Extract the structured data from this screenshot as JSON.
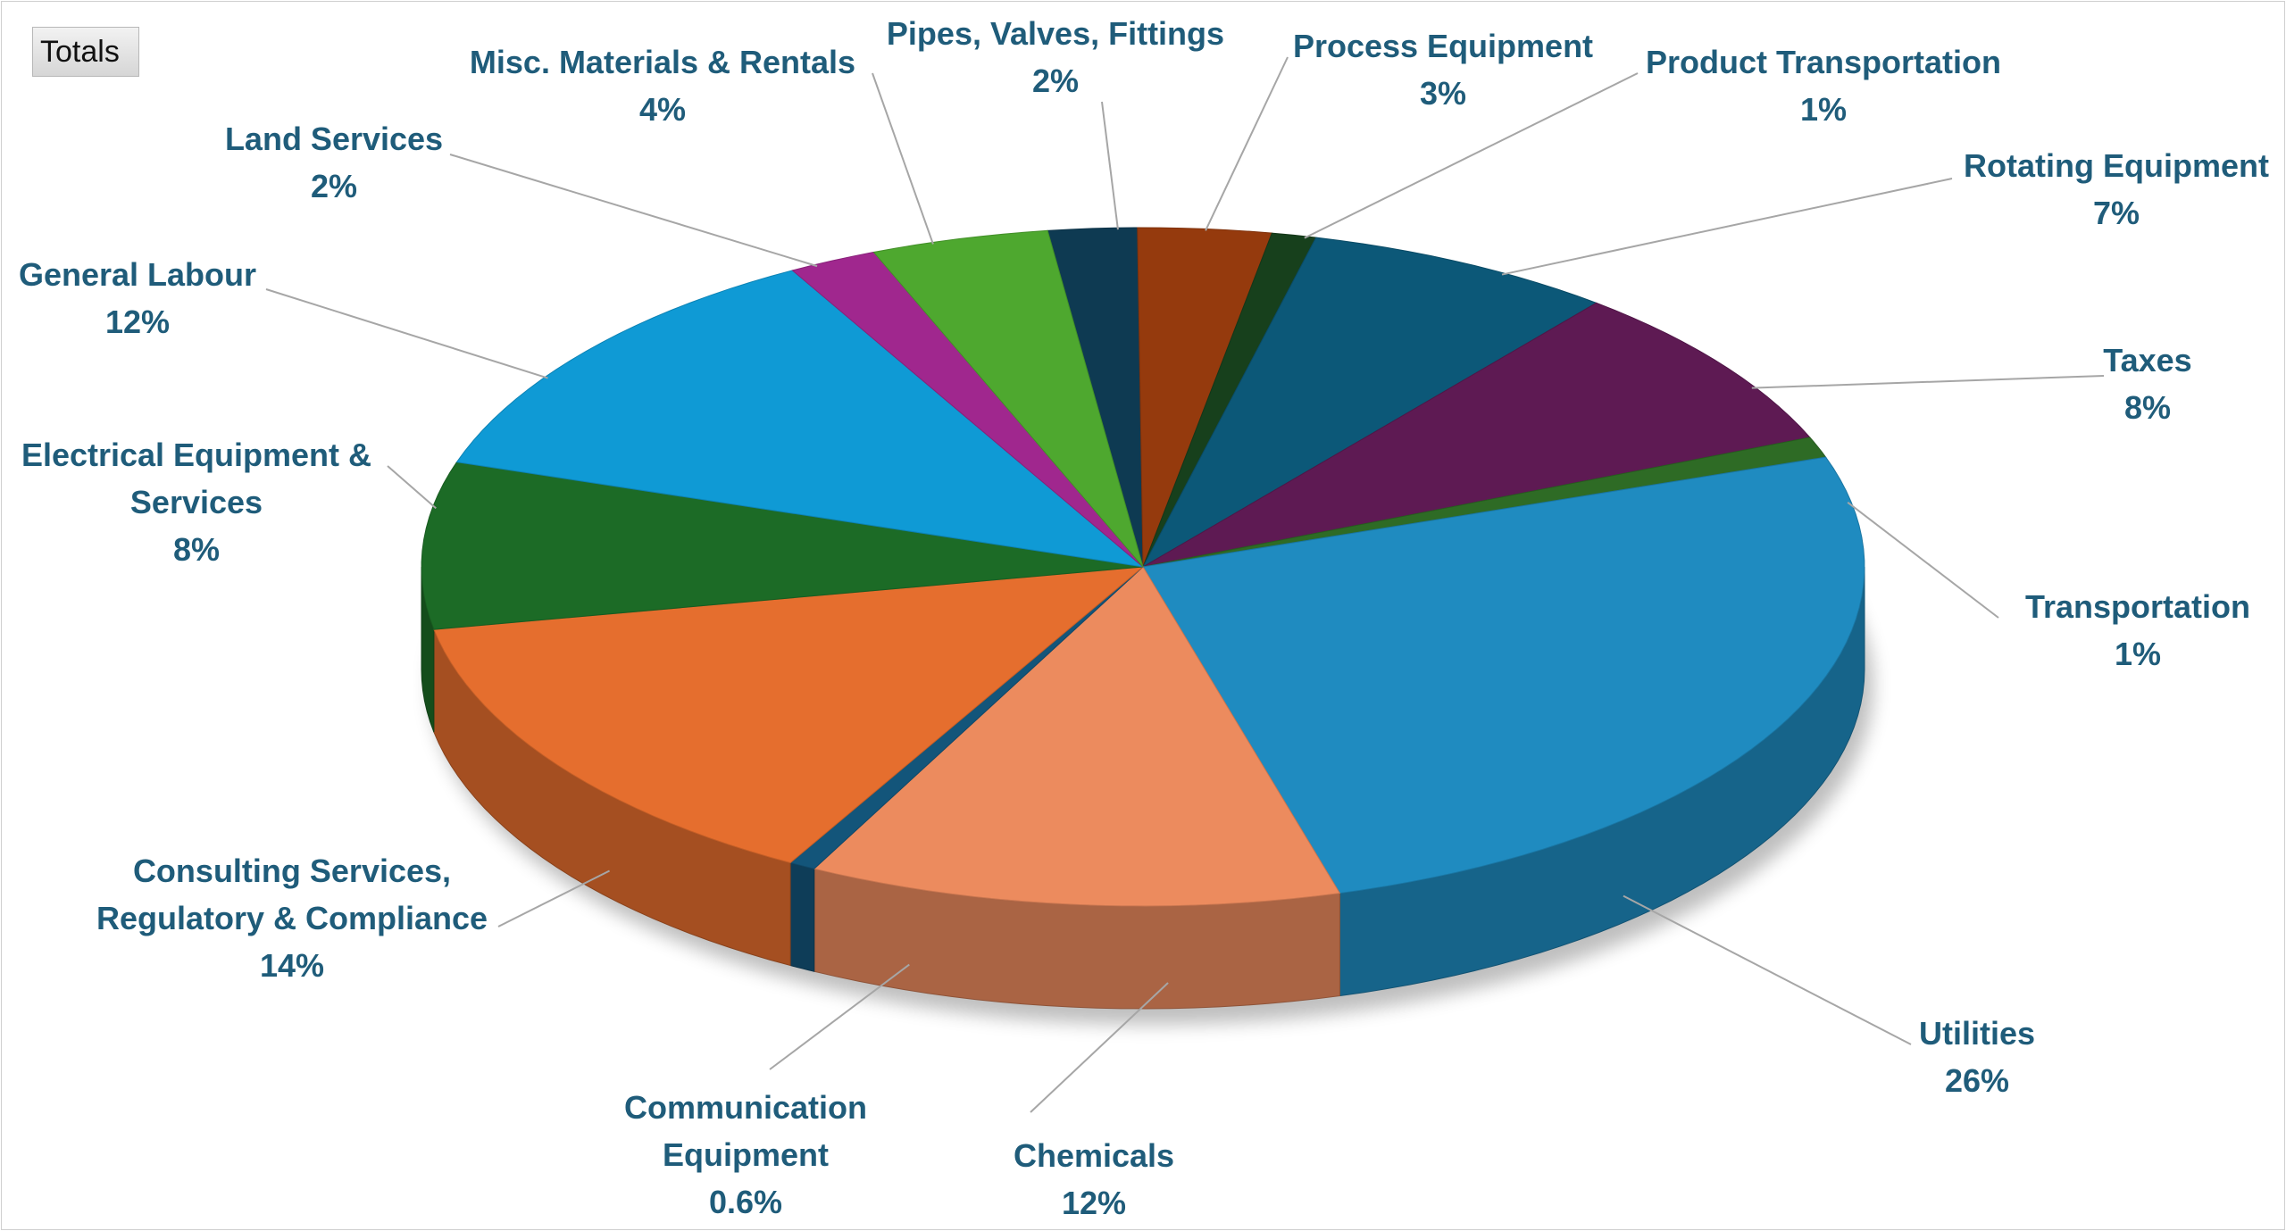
{
  "filter_button": {
    "label": "Totals"
  },
  "colors": {
    "label_text": "#1f5c7a",
    "leader_line": "#a6a6a6"
  },
  "chart_data": {
    "type": "pie",
    "style": "3d",
    "title": "",
    "legend": "none",
    "slices": [
      {
        "name": "Pipes, Valves, Fittings",
        "value": 2,
        "label": "2%",
        "color": "#0e3a52"
      },
      {
        "name": "Process Equipment",
        "value": 3,
        "label": "3%",
        "color": "#953a0d"
      },
      {
        "name": "Product Transportation",
        "value": 1,
        "label": "1%",
        "color": "#17401c"
      },
      {
        "name": "Rotating Equipment",
        "value": 7,
        "label": "7%",
        "color": "#0c5878"
      },
      {
        "name": "Taxes",
        "value": 8,
        "label": "8%",
        "color": "#5e1a53"
      },
      {
        "name": "Transportation",
        "value": 1,
        "label": "1%",
        "color": "#2e6b25"
      },
      {
        "name": "Utilities",
        "value": 26,
        "label": "26%",
        "color": "#1f8bc0"
      },
      {
        "name": "Chemicals",
        "value": 12,
        "label": "12%",
        "color": "#ec8b5e"
      },
      {
        "name": "Communication Equipment",
        "value": 0.6,
        "label": "0.6%",
        "color": "#13557a"
      },
      {
        "name": "Consulting Services, Regulatory & Compliance",
        "value": 14,
        "label": "14%",
        "color": "#e56e2e"
      },
      {
        "name": "Electrical Equipment & Services",
        "value": 8,
        "label": "8%",
        "color": "#1c6b26"
      },
      {
        "name": "General Labour",
        "value": 12,
        "label": "12%",
        "color": "#0f9ad5"
      },
      {
        "name": "Land Services",
        "value": 2,
        "label": "2%",
        "color": "#a0278e"
      },
      {
        "name": "Misc. Materials & Rentals",
        "value": 4,
        "label": "4%",
        "color": "#4ea82f"
      }
    ]
  }
}
